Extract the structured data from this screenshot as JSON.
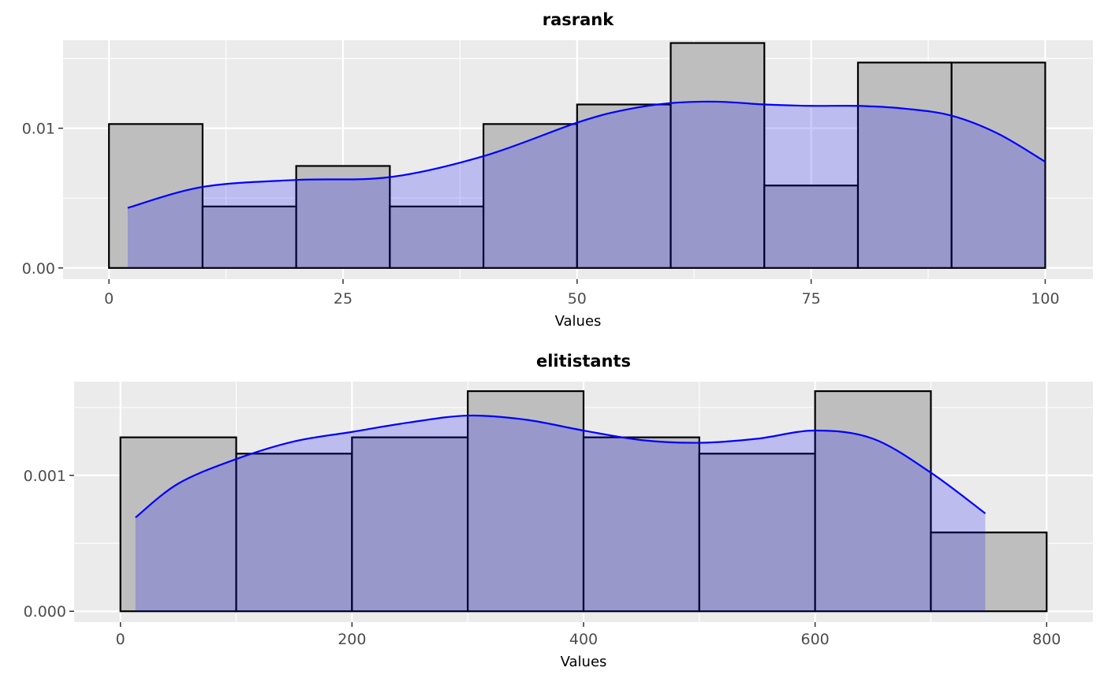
{
  "chart_data": [
    {
      "type": "bar",
      "title": "rasrank",
      "xlabel": "Values",
      "ylabel": "",
      "bin_edges": [
        0,
        10,
        20,
        30,
        40,
        50,
        60,
        70,
        80,
        90,
        100
      ],
      "values": [
        0.0103,
        0.0044,
        0.0073,
        0.0044,
        0.0103,
        0.0117,
        0.0161,
        0.0059,
        0.0147,
        0.0147
      ],
      "xlim": [
        -4.9,
        105.1
      ],
      "ylim": [
        -0.0008,
        0.0163
      ],
      "x_ticks": [
        0,
        25,
        50,
        75,
        100
      ],
      "y_ticks": [
        0.0,
        0.01
      ],
      "x_tick_labels": [
        "0",
        "25",
        "50",
        "75",
        "100"
      ],
      "y_tick_labels": [
        "0.00",
        "0.01"
      ],
      "density": {
        "x": [
          2,
          10,
          20,
          30,
          40,
          50,
          55,
          60,
          65,
          70,
          75,
          80,
          85,
          90,
          95,
          100
        ],
        "y": [
          0.0043,
          0.0058,
          0.0063,
          0.0065,
          0.008,
          0.0104,
          0.0113,
          0.0118,
          0.0119,
          0.0117,
          0.0116,
          0.0116,
          0.0114,
          0.0109,
          0.0096,
          0.0076
        ]
      },
      "colors": {
        "bar_fill": "#bebebe",
        "bar_stroke": "#000000",
        "density_line": "#0000ff",
        "density_fill": "rgba(0,0,255,0.2)",
        "panel_bg": "#ebebeb",
        "grid": "#ffffff"
      }
    },
    {
      "type": "bar",
      "title": "elitistants",
      "xlabel": "Values",
      "ylabel": "",
      "bin_edges": [
        0,
        100,
        200,
        300,
        400,
        500,
        600,
        700,
        800
      ],
      "values": [
        0.00128,
        0.00116,
        0.00128,
        0.00162,
        0.00128,
        0.00116,
        0.00162,
        0.00058
      ],
      "xlim": [
        -40,
        840
      ],
      "ylim": [
        -8e-05,
        0.00169
      ],
      "x_ticks": [
        0,
        200,
        400,
        600,
        800
      ],
      "y_ticks": [
        0.0,
        0.001
      ],
      "x_tick_labels": [
        "0",
        "200",
        "400",
        "600",
        "800"
      ],
      "y_tick_labels": [
        "0.000",
        "0.001"
      ],
      "density": {
        "x": [
          13,
          50,
          100,
          150,
          200,
          250,
          300,
          350,
          400,
          450,
          500,
          550,
          600,
          650,
          700,
          747
        ],
        "y": [
          0.00069,
          0.00094,
          0.00112,
          0.00125,
          0.00132,
          0.00139,
          0.00144,
          0.00141,
          0.00133,
          0.00126,
          0.00124,
          0.00127,
          0.00133,
          0.00127,
          0.00102,
          0.00072
        ]
      },
      "colors": {
        "bar_fill": "#bebebe",
        "bar_stroke": "#000000",
        "density_line": "#0000ff",
        "density_fill": "rgba(0,0,255,0.2)",
        "panel_bg": "#ebebeb",
        "grid": "#ffffff"
      }
    }
  ]
}
